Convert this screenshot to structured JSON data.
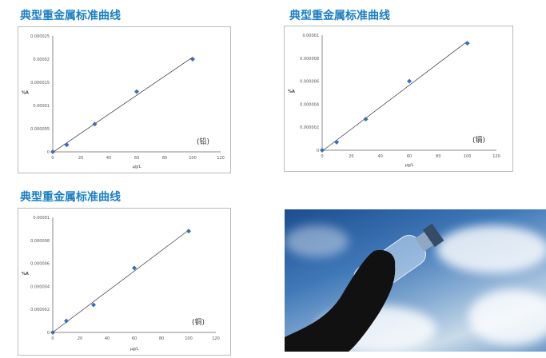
{
  "chart_data": [
    {
      "type": "scatter",
      "title": "典型重金属标准曲线",
      "annotation": "(铅)",
      "xlabel": "µg/L",
      "ylabel": "%A",
      "xlim": [
        0,
        120
      ],
      "ylim": [
        0,
        2.5e-05
      ],
      "xticks": [
        "0",
        "20",
        "40",
        "60",
        "80",
        "100",
        "120"
      ],
      "yticks": [
        "0",
        "0.000005",
        "0.00001",
        "0.000015",
        "0.00002",
        "0.000025"
      ],
      "x": [
        0,
        10,
        30,
        60,
        100
      ],
      "y": [
        0,
        1.5e-06,
        6e-06,
        1.3e-05,
        2e-05
      ],
      "trendline": true,
      "color": "#3a6fb5"
    },
    {
      "type": "scatter",
      "title": "典型重金属标准曲线",
      "annotation": "(镉)",
      "xlabel": "µg/L",
      "ylabel": "%A",
      "xlim": [
        0,
        120
      ],
      "ylim": [
        0,
        1e-05
      ],
      "xticks": [
        "0",
        "20",
        "40",
        "60",
        "80",
        "100",
        "120"
      ],
      "yticks": [
        "0",
        "0.000002",
        "0.000004",
        "0.000006",
        "0.000008",
        "0.00001"
      ],
      "x": [
        0,
        10,
        30,
        60,
        100
      ],
      "y": [
        0,
        7e-07,
        2.7e-06,
        6e-06,
        9.3e-06
      ],
      "trendline": true,
      "color": "#3a6fb5"
    },
    {
      "type": "scatter",
      "title": "典型重金属标准曲线",
      "annotation": "(铜)",
      "xlabel": "µg/L",
      "ylabel": "%A",
      "xlim": [
        0,
        120
      ],
      "ylim": [
        0,
        1e-05
      ],
      "xticks": [
        "0",
        "20",
        "40",
        "60",
        "80",
        "100",
        "120"
      ],
      "yticks": [
        "0",
        "0.000002",
        "0.000004",
        "0.000006",
        "0.000008",
        "0.00001"
      ],
      "x": [
        0,
        10,
        30,
        60,
        100
      ],
      "y": [
        0,
        1e-06,
        2.4e-06,
        5.6e-06,
        8.8e-06
      ],
      "trendline": true,
      "color": "#3a6fb5"
    }
  ],
  "photo": {
    "subject": "hand-holding-water-bottle-against-sky"
  }
}
